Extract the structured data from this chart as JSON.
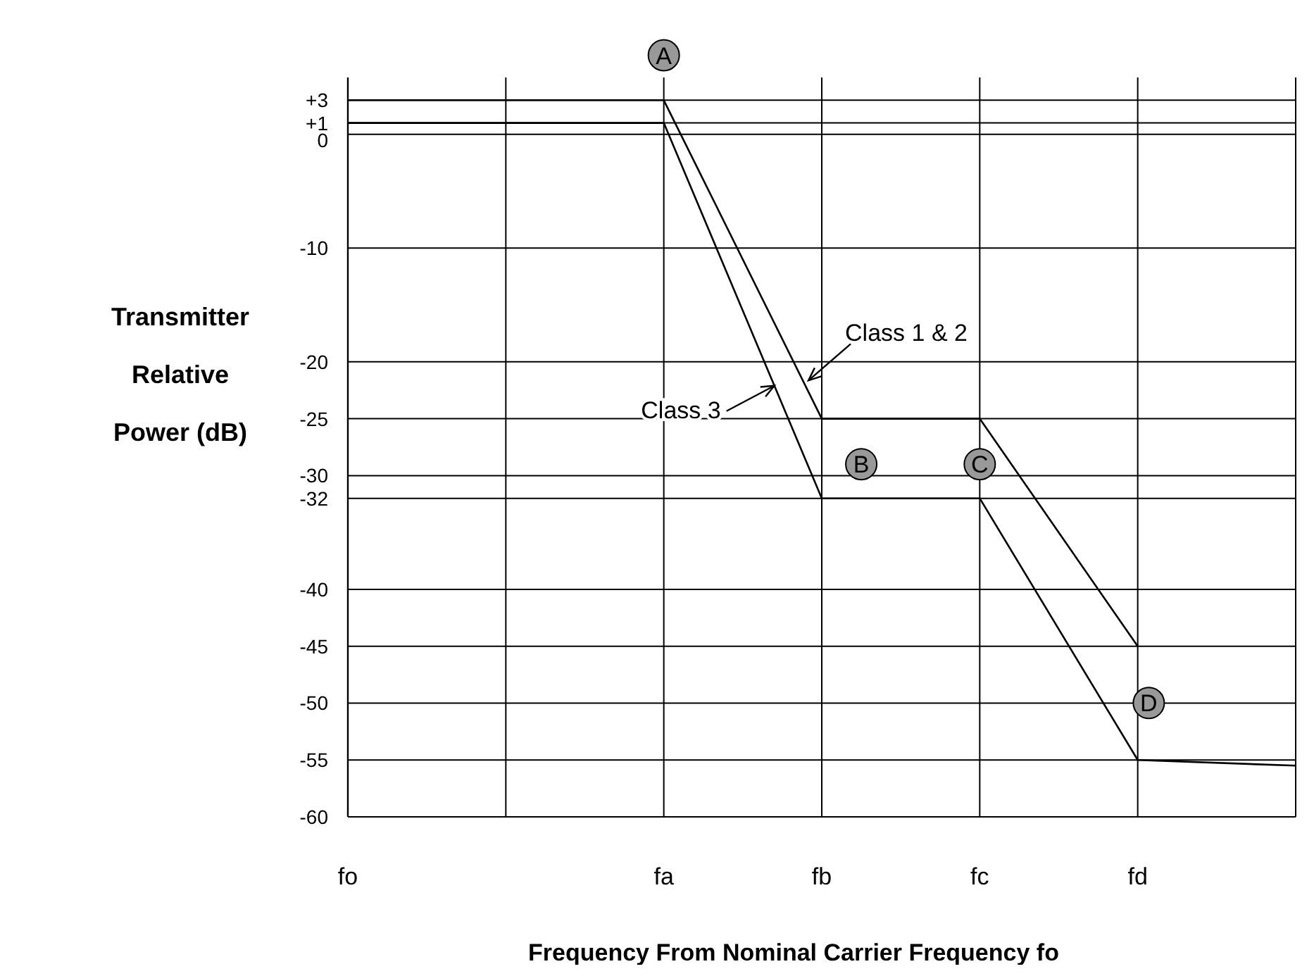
{
  "chart_data": {
    "type": "line",
    "xlabel": "Frequency From Nominal Carrier Frequency fo",
    "ylabel": "Transmitter Relative Power (dB)",
    "categories": [
      "fo",
      null,
      "fa",
      "fb",
      "fc",
      "fd",
      null
    ],
    "ylim": [
      -60,
      5
    ],
    "yticks": [
      {
        "value": 3,
        "label": "+3"
      },
      {
        "value": 1,
        "label": "+1"
      },
      0,
      -10,
      -20,
      -25,
      -30,
      -32,
      -40,
      -45,
      -50,
      -55,
      -60
    ],
    "grid": true,
    "line_style": "solid",
    "series": [
      {
        "name": "Class 1 & 2",
        "color": "#000000",
        "values": [
          3,
          3,
          3,
          -25,
          -25,
          -45,
          null
        ]
      },
      {
        "name": "Class 3",
        "color": "#000000",
        "values": [
          1,
          1,
          1,
          -32,
          -32,
          -55,
          -55.5
        ]
      }
    ],
    "annotations": [
      "A",
      "B",
      "C",
      "D"
    ]
  }
}
